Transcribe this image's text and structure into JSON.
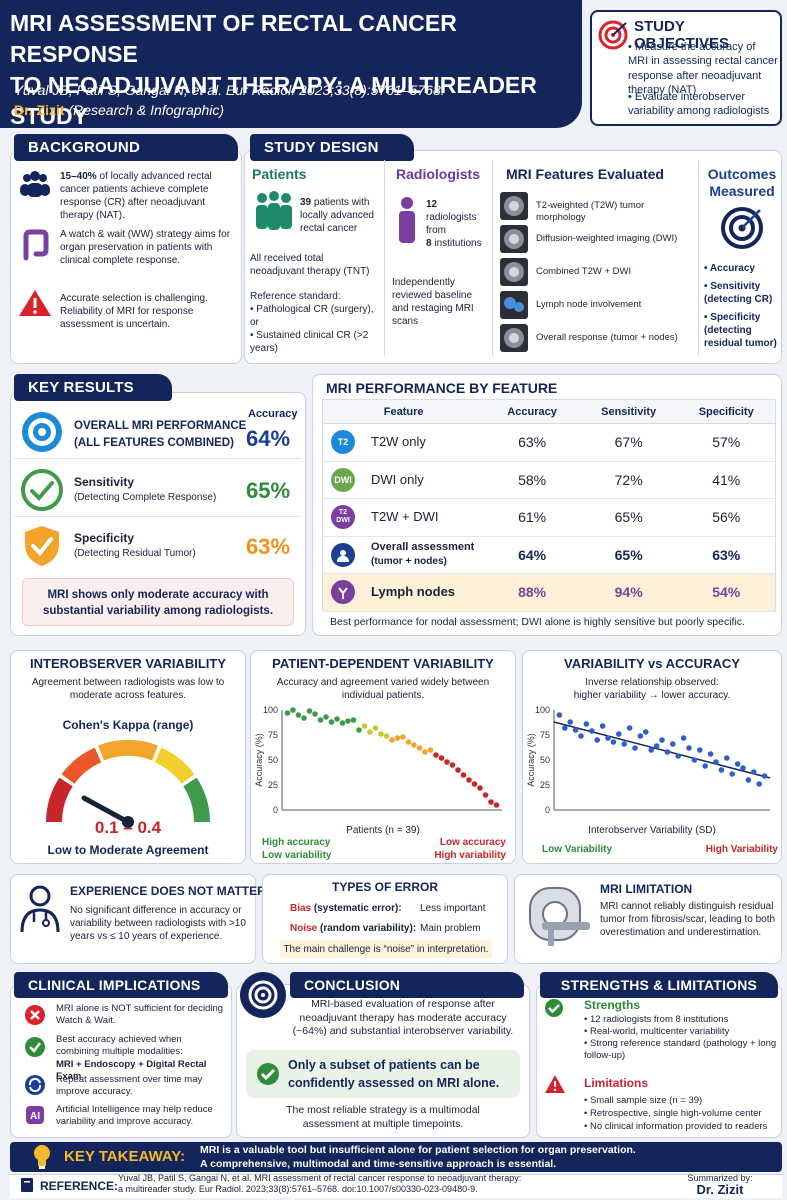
{
  "header": {
    "title_line1": "MRI ASSESSMENT OF RECTAL CANCER RESPONSE",
    "title_line2": "TO NEOADJUVANT THERAPY: A MULTIREADER STUDY",
    "citation": "Yuval JB, Patil S, Gangai N, et al. Eur Radiol. 2023;33(8):5761–5768.",
    "author": "Dr. Zizit",
    "author_note": "(Research & Infographic)"
  },
  "objectives": {
    "title": "STUDY OBJECTIVES",
    "items": [
      "Measure the accuracy of MRI in assessing rectal cancer response after neoadjuvant therapy (NAT)",
      "Evaluate interobserver variability among radiologists"
    ]
  },
  "background": {
    "title": "BACKGROUND",
    "items": [
      {
        "bold": "15–40%",
        "text": " of locally advanced rectal cancer patients achieve complete response (CR) after neoadjuvant therapy (NAT)."
      },
      {
        "bold": "",
        "text": "A watch & wait (WW) strategy aims for organ preservation in patients with clinical complete response."
      },
      {
        "bold": "",
        "text": "Accurate selection is challenging. Reliability of MRI for response assessment is uncertain."
      }
    ]
  },
  "design": {
    "title": "STUDY DESIGN",
    "patients_title": "Patients",
    "patients_count": "39",
    "patients_text": " patients with locally advanced rectal cancer",
    "tnt": "All received total neoadjuvant therapy (TNT)",
    "reference_label": "Reference standard:",
    "reference_items": [
      "Pathological CR (surgery), or",
      "Sustained clinical CR (>2 years)"
    ],
    "radiologists_title": "Radiologists",
    "rad_count": "12",
    "rad_text1": " radiologists from",
    "inst_count": "8",
    "rad_text2": " institutions",
    "review": "Independently reviewed baseline and restaging MRI scans",
    "features_title": "MRI Features Evaluated",
    "features": [
      "T2-weighted (T2W) tumor morphology",
      "Diffusion-weighted imaging (DWI)",
      "Combined T2W + DWI",
      "Lymph node involvement",
      "Overall response (tumor + nodes)"
    ],
    "outcomes_title_1": "Outcomes",
    "outcomes_title_2": "Measured",
    "outcomes": [
      "Accuracy",
      "Sensitivity (detecting CR)",
      "Specificity (detecting residual tumor)"
    ]
  },
  "key_results": {
    "title": "KEY RESULTS",
    "overall_label_1": "OVERALL MRI PERFORMANCE",
    "overall_label_2": "(ALL FEATURES COMBINED)",
    "accuracy_head": "Accuracy",
    "overall_value": "64%",
    "sens_label": "Sensitivity",
    "sens_sub": "(Detecting Complete Response)",
    "sens_value": "65%",
    "spec_label": "Specificity",
    "spec_sub": "(Detecting Residual Tumor)",
    "spec_value": "63%",
    "note": "MRI shows only moderate accuracy with substantial variability among radiologists.",
    "colors": {
      "accuracy": "#1b3f91",
      "sensitivity": "#2e8b3a",
      "specificity": "#f0921e"
    }
  },
  "performance": {
    "title": "MRI PERFORMANCE BY FEATURE",
    "headers": [
      "Feature",
      "Accuracy",
      "Sensitivity",
      "Specificity"
    ],
    "rows": [
      {
        "badge": "T2",
        "feature": "T2W only",
        "acc": "63%",
        "sens": "67%",
        "spec": "57%"
      },
      {
        "badge": "DWI",
        "feature": "DWI only",
        "acc": "58%",
        "sens": "72%",
        "spec": "41%"
      },
      {
        "badge": "T2\nDWI",
        "feature": "T2W + DWI",
        "acc": "61%",
        "sens": "65%",
        "spec": "56%"
      },
      {
        "badge": "person-icon",
        "feature": "Overall assessment",
        "feature_sub": "(tumor + nodes)",
        "acc": "64%",
        "sens": "65%",
        "spec": "63%"
      },
      {
        "badge": "node-icon",
        "feature": "Lymph nodes",
        "acc": "88%",
        "sens": "94%",
        "spec": "54%"
      }
    ],
    "note": "Best performance for nodal assessment; DWI alone is highly sensitive but poorly specific."
  },
  "interobserver": {
    "title": "INTEROBSERVER VARIABILITY",
    "text": "Agreement between radiologists was low to moderate across features.",
    "gauge_label": "Cohen's Kappa (range)",
    "range": "0.1 – 0.4",
    "agreement": "Low to Moderate Agreement"
  },
  "patient_var": {
    "title": "PATIENT-DEPENDENT VARIABILITY",
    "text": "Accuracy and agreement varied widely between individual patients.",
    "xlabel": "Patients (n = 39)",
    "ylabel": "Accuracy (%)",
    "left_1": "High accuracy",
    "left_2": "Low variability",
    "right_1": "Low accuracy",
    "right_2": "High variability"
  },
  "var_acc": {
    "title": "VARIABILITY vs ACCURACY",
    "text1": "Inverse relationship observed:",
    "text2": "higher variability → lower accuracy.",
    "xlabel": "Interobserver Variability (SD)",
    "ylabel": "Accuracy (%)",
    "left": "Low Variability",
    "right": "High Variability"
  },
  "chart_data": [
    {
      "type": "scatter",
      "title": "PATIENT-DEPENDENT VARIABILITY",
      "xlabel": "Patients (n = 39)",
      "ylabel": "Accuracy (%)",
      "ylim": [
        0,
        100
      ],
      "yticks": [
        0,
        25,
        50,
        75,
        100
      ],
      "x": [
        1,
        2,
        3,
        4,
        5,
        6,
        7,
        8,
        9,
        10,
        11,
        12,
        13,
        14,
        15,
        16,
        17,
        18,
        19,
        20,
        21,
        22,
        23,
        24,
        25,
        26,
        27,
        28,
        29,
        30,
        31,
        32,
        33,
        34,
        35,
        36,
        37,
        38,
        39
      ],
      "y": [
        97,
        100,
        95,
        92,
        99,
        96,
        90,
        93,
        88,
        91,
        87,
        89,
        90,
        80,
        84,
        78,
        82,
        76,
        74,
        70,
        72,
        73,
        68,
        65,
        62,
        58,
        60,
        55,
        52,
        48,
        45,
        40,
        35,
        30,
        26,
        22,
        15,
        8,
        5
      ]
    },
    {
      "type": "scatter",
      "title": "VARIABILITY vs ACCURACY",
      "xlabel": "Interobserver Variability (SD)",
      "ylabel": "Accuracy (%)",
      "ylim": [
        0,
        100
      ],
      "yticks": [
        0,
        25,
        50,
        75,
        100
      ],
      "x": [
        1,
        2,
        3,
        4,
        5,
        6,
        7,
        8,
        9,
        10,
        11,
        12,
        13,
        14,
        15,
        16,
        17,
        18,
        19,
        20,
        21,
        22,
        23,
        24,
        25,
        26,
        27,
        28,
        29,
        30,
        31,
        32,
        33,
        34,
        35,
        36,
        37,
        38,
        39
      ],
      "y": [
        95,
        82,
        88,
        80,
        74,
        86,
        79,
        70,
        84,
        72,
        68,
        76,
        66,
        82,
        62,
        74,
        78,
        60,
        64,
        70,
        58,
        66,
        54,
        72,
        62,
        50,
        60,
        44,
        56,
        48,
        40,
        52,
        36,
        46,
        42,
        30,
        38,
        26,
        34
      ],
      "trend": [
        [
          0,
          88
        ],
        [
          40,
          32
        ]
      ]
    }
  ],
  "experience": {
    "title": "EXPERIENCE DOES NOT MATTER",
    "text": "No significant difference in accuracy or variability between radiologists with >10 years vs ≤ 10 years of experience."
  },
  "error_types": {
    "title": "TYPES OF ERROR",
    "bias": "Bias",
    "bias_desc": "(systematic error):",
    "bias_val": "Less important",
    "noise": "Noise",
    "noise_desc": "(random variability):",
    "noise_val": "Main problem",
    "note": "The main challenge is “noise” in interpretation."
  },
  "limitation": {
    "title": "MRI LIMITATION",
    "text": "MRI cannot reliably distinguish residual tumor from fibrosis/scar, leading to both overestimation and underestimation."
  },
  "clinical": {
    "title": "CLINICAL IMPLICATIONS",
    "items": [
      {
        "text": "MRI alone is NOT sufficient for deciding Watch & Wait."
      },
      {
        "text": "Best accuracy achieved when combining multiple modalities:",
        "bold": "MRI + Endoscopy + Digital Rectal Exam"
      },
      {
        "text": "Repeat assessment over time may improve accuracy."
      },
      {
        "text": "Artificial Intelligence may help reduce variability and improve accuracy."
      }
    ]
  },
  "conclusion": {
    "title": "CONCLUSION",
    "text": "MRI-based evaluation of response after neoadjuvant therapy has moderate accuracy (~64%) and substantial interobserver variability.",
    "highlight": "Only a subset of patients can be confidently assessed on MRI alone.",
    "final": "The most reliable strategy is a multimodal assessment at multiple timepoints."
  },
  "strengths": {
    "title": "STRENGTHS & LIMITATIONS",
    "s_head": "Strengths",
    "s_items": [
      "12 radiologists from 8 institutions",
      "Real-world, multicenter variability",
      "Strong reference standard (pathology + long follow-up)"
    ],
    "l_head": "Limitations",
    "l_items": [
      "Small sample size (n = 39)",
      "Retrospective, single high-volume center",
      "No clinical information provided to readers"
    ]
  },
  "takeaway": {
    "label": "KEY TAKEAWAY:",
    "line1": "MRI is a valuable tool but insufficient alone for patient selection for organ preservation.",
    "line2": "A comprehensive, multimodal and time-sensitive approach is essential."
  },
  "reference": {
    "label": "REFERENCE:",
    "line1": "Yuval JB, Patil S, Gangai N, et al. MRI assessment of rectal cancer response to neoadjuvant therapy:",
    "line2": "a multireader study. Eur Radiol. 2023;33(8):5761–5768. doi:10.1007/s00330-023-09480-9.",
    "summ": "Summarized by:",
    "summ_name": "Dr. Zizit"
  }
}
